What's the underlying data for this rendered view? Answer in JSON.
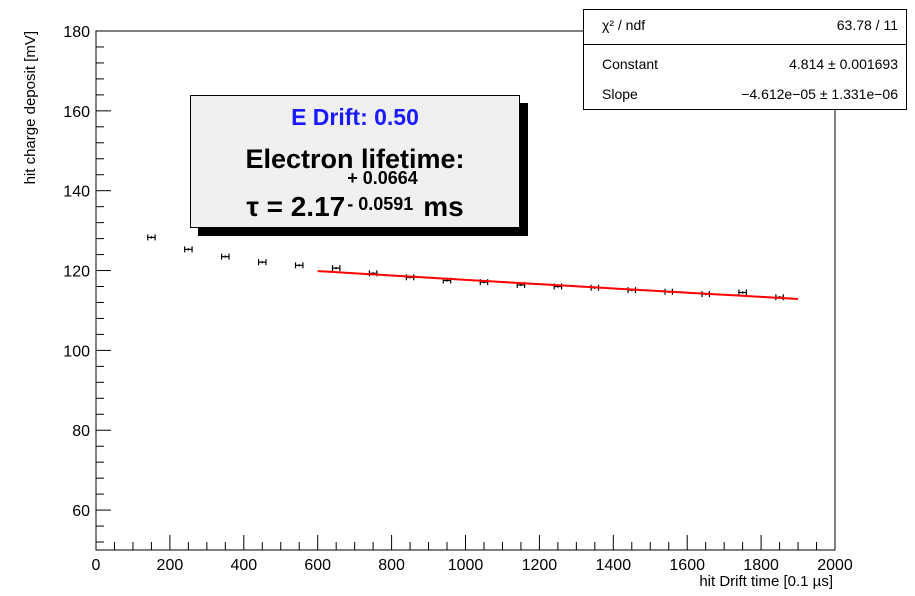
{
  "chart_data": {
    "type": "scatter",
    "xlabel": "hit Drift time [0.1 µs]",
    "ylabel": "hit charge deposit [mV]",
    "xlim": [
      0,
      2000
    ],
    "ylim": [
      50,
      180
    ],
    "x_ticks": [
      0,
      200,
      400,
      600,
      800,
      1000,
      1200,
      1400,
      1600,
      1800,
      2000
    ],
    "y_ticks": [
      60,
      80,
      100,
      120,
      140,
      160,
      180
    ],
    "points": [
      {
        "x": 150,
        "y": 128.3
      },
      {
        "x": 250,
        "y": 125.3
      },
      {
        "x": 350,
        "y": 123.5
      },
      {
        "x": 450,
        "y": 122.1
      },
      {
        "x": 550,
        "y": 121.3
      },
      {
        "x": 650,
        "y": 120.6
      },
      {
        "x": 750,
        "y": 119.3
      },
      {
        "x": 850,
        "y": 118.3
      },
      {
        "x": 950,
        "y": 117.5
      },
      {
        "x": 1050,
        "y": 117.1
      },
      {
        "x": 1150,
        "y": 116.4
      },
      {
        "x": 1250,
        "y": 116.0
      },
      {
        "x": 1350,
        "y": 115.7
      },
      {
        "x": 1450,
        "y": 115.1
      },
      {
        "x": 1550,
        "y": 114.7
      },
      {
        "x": 1650,
        "y": 114.1
      },
      {
        "x": 1750,
        "y": 114.5
      },
      {
        "x": 1850,
        "y": 113.3
      }
    ],
    "x_error_halfwidth": 10,
    "y_error": 0.3,
    "fit": {
      "function": "exponential",
      "x_range": [
        600,
        1900
      ],
      "constant": 4.814,
      "slope": -4.612e-05,
      "color": "#ff0000"
    },
    "grid": false
  },
  "stats_box": {
    "rows": [
      {
        "label": "χ² / ndf",
        "value": "63.78 / 11"
      },
      {
        "label": "Constant",
        "value": "4.814 ± 0.001693"
      },
      {
        "label": "Slope",
        "value": "−4.612e−05 ± 1.331e−06"
      }
    ]
  },
  "lifetime_box": {
    "title": "E Drift: 0.50",
    "title_color": "#1a1aff",
    "heading": "Electron lifetime:",
    "tau": "τ = 2.17",
    "err_up": "+ 0.0664",
    "err_down": "- 0.0591",
    "unit": "ms"
  }
}
